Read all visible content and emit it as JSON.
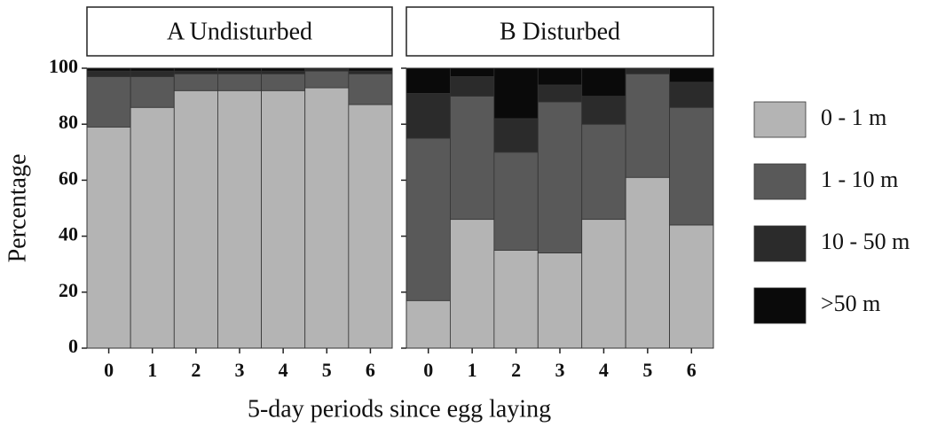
{
  "chart_data": [
    {
      "type": "bar",
      "stacked": true,
      "title": "A Undisturbed",
      "ylabel": "Percentage",
      "xlabel": "5-day periods since egg laying",
      "categories": [
        "0",
        "1",
        "2",
        "3",
        "4",
        "5",
        "6"
      ],
      "ylim": [
        0,
        100
      ],
      "yticks": [
        0,
        20,
        40,
        60,
        80,
        100
      ],
      "series": [
        {
          "name": "0 - 1 m",
          "color": "#b4b4b4",
          "values": [
            79,
            86,
            92,
            92,
            92,
            93,
            87
          ]
        },
        {
          "name": "1 - 10 m",
          "color": "#595959",
          "values": [
            18,
            11,
            6,
            6,
            6,
            6,
            11
          ]
        },
        {
          "name": "10 - 50 m",
          "color": "#2b2b2b",
          "values": [
            2,
            2,
            1,
            1,
            1,
            1,
            1
          ]
        },
        {
          "name": ">50 m",
          "color": "#0a0a0a",
          "values": [
            1,
            1,
            1,
            1,
            1,
            0,
            1
          ]
        }
      ]
    },
    {
      "type": "bar",
      "stacked": true,
      "title": "B Disturbed",
      "categories": [
        "0",
        "1",
        "2",
        "3",
        "4",
        "5",
        "6"
      ],
      "ylim": [
        0,
        100
      ],
      "yticks": [
        0,
        20,
        40,
        60,
        80,
        100
      ],
      "series": [
        {
          "values": [
            17,
            46,
            35,
            34,
            46,
            61,
            44
          ]
        },
        {
          "values": [
            58,
            44,
            35,
            54,
            34,
            37,
            42
          ]
        },
        {
          "values": [
            16,
            7,
            12,
            6,
            10,
            2,
            9
          ]
        },
        {
          "values": [
            9,
            3,
            18,
            6,
            10,
            0,
            5
          ]
        }
      ]
    }
  ]
}
